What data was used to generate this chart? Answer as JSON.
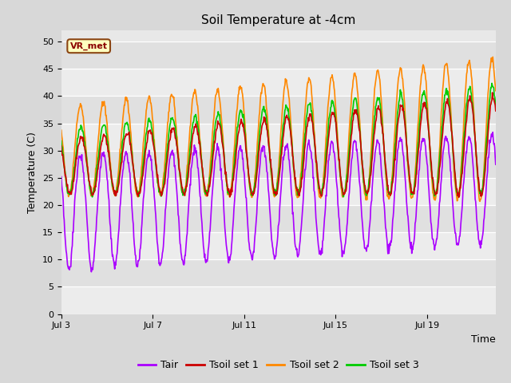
{
  "title": "Soil Temperature at -4cm",
  "xlabel": "Time",
  "ylabel": "Temperature (C)",
  "ylim": [
    0,
    52
  ],
  "yticks": [
    0,
    5,
    10,
    15,
    20,
    25,
    30,
    35,
    40,
    45,
    50
  ],
  "n_days": 19,
  "tair_color": "#aa00ff",
  "tsoil1_color": "#cc0000",
  "tsoil2_color": "#ff8800",
  "tsoil3_color": "#00cc00",
  "xtick_positions": [
    0,
    4,
    8,
    12,
    16
  ],
  "xtick_labels": [
    "Jul 3",
    "Jul 7",
    "Jul 11",
    "Jul 15",
    "Jul 19"
  ],
  "annotation_text": "VR_met",
  "legend_items": [
    "Tair",
    "Tsoil set 1",
    "Tsoil set 2",
    "Tsoil set 3"
  ],
  "legend_colors": [
    "#aa00ff",
    "#cc0000",
    "#ff8800",
    "#00cc00"
  ],
  "fig_bg": "#d8d8d8",
  "plot_bg_light": "#e8e8e8",
  "plot_bg_dark": "#d8d8d8"
}
